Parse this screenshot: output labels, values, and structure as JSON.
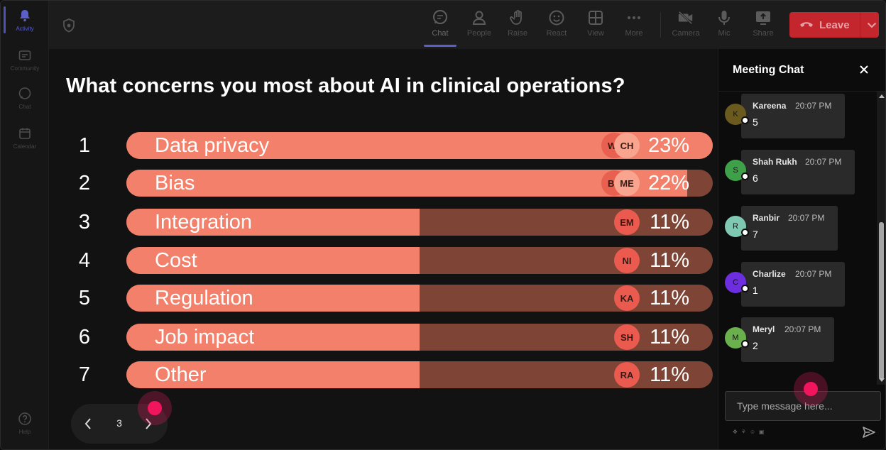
{
  "rail": {
    "items": [
      {
        "label": "Activity",
        "icon": "bell-icon",
        "active": true
      },
      {
        "label": "Community",
        "icon": "community-icon",
        "active": false
      },
      {
        "label": "Chat",
        "icon": "chat-icon",
        "active": false
      },
      {
        "label": "Calendar",
        "icon": "calendar-icon",
        "active": false
      }
    ],
    "help_label": "Help"
  },
  "toolbar": {
    "chat_label": "Chat",
    "people_label": "People",
    "raise_label": "Raise",
    "react_label": "React",
    "view_label": "View",
    "more_label": "More",
    "camera_label": "Camera",
    "mic_label": "Mic",
    "share_label": "Share",
    "leave_label": "Leave"
  },
  "poll": {
    "question": "What concerns you most about AI in clinical operations?",
    "options": [
      {
        "number": "1",
        "label": "Data privacy",
        "percent_text": "23%",
        "share": 1.0,
        "voters": [
          "WI",
          "CH"
        ]
      },
      {
        "number": "2",
        "label": "Bias",
        "percent_text": "22%",
        "share": 0.957,
        "voters": [
          "BR",
          "ME"
        ]
      },
      {
        "number": "3",
        "label": "Integration",
        "percent_text": "11%",
        "share": 0.5,
        "voters": [
          "EM"
        ]
      },
      {
        "number": "4",
        "label": "Cost",
        "percent_text": "11%",
        "share": 0.5,
        "voters": [
          "NI"
        ]
      },
      {
        "number": "5",
        "label": "Regulation",
        "percent_text": "11%",
        "share": 0.5,
        "voters": [
          "KA"
        ]
      },
      {
        "number": "6",
        "label": "Job impact",
        "percent_text": "11%",
        "share": 0.5,
        "voters": [
          "SH"
        ]
      },
      {
        "number": "7",
        "label": "Other",
        "percent_text": "11%",
        "share": 0.5,
        "voters": [
          "RA"
        ]
      }
    ],
    "page": "3"
  },
  "chat": {
    "title": "Meeting Chat",
    "messages": [
      {
        "initial": "K",
        "name": "Kareena",
        "time": "20:07 PM",
        "text": "5",
        "color": "#6b5a1e"
      },
      {
        "initial": "S",
        "name": "Shah Rukh",
        "time": "20:07 PM",
        "text": "6",
        "color": "#3fa04a"
      },
      {
        "initial": "R",
        "name": "Ranbir",
        "time": "20:07 PM",
        "text": "7",
        "color": "#7fc8b1"
      },
      {
        "initial": "C",
        "name": "Charlize",
        "time": "20:07 PM",
        "text": "1",
        "color": "#6d2ee0"
      },
      {
        "initial": "M",
        "name": "Meryl",
        "time": "20:07 PM",
        "text": "2",
        "color": "#6ab04c"
      }
    ],
    "input_placeholder": "Type message here..."
  },
  "colors": {
    "poll_fill": "#f3806a",
    "poll_track": "#7e4536",
    "leave": "#c4262e",
    "accent": "#5b5fc7",
    "cursor": "#f1155e"
  }
}
